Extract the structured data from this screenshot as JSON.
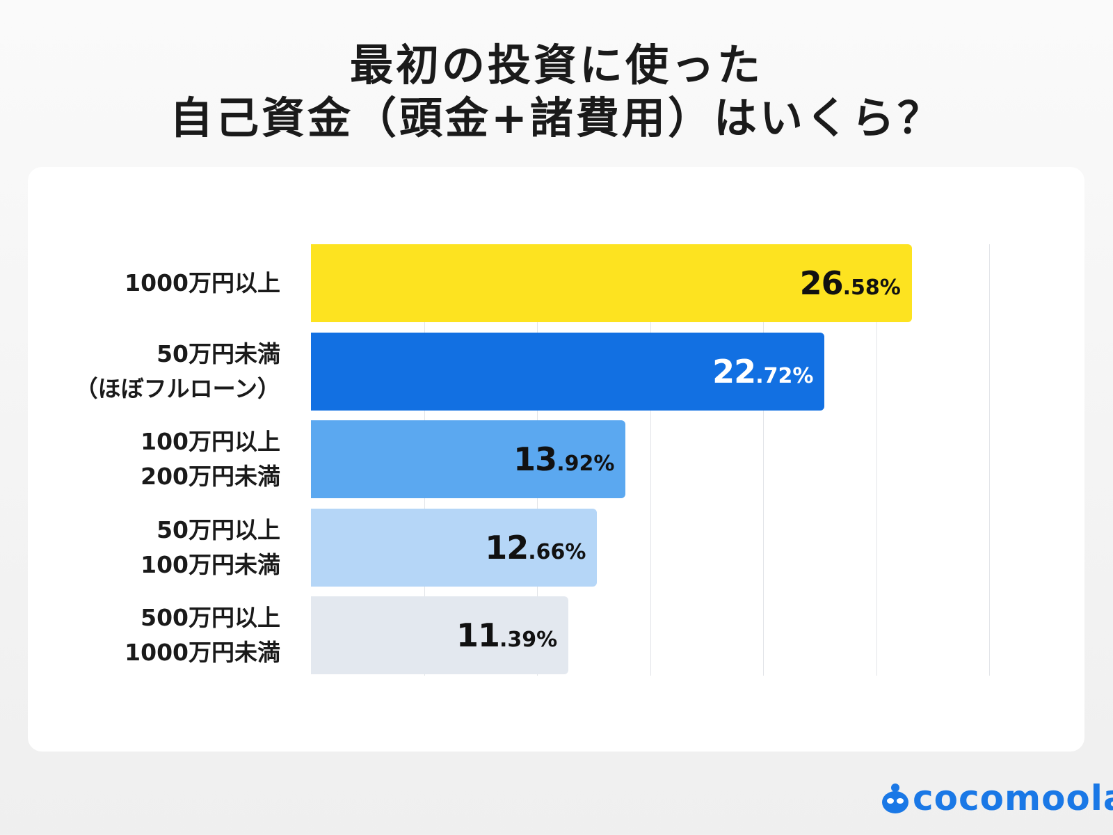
{
  "title": {
    "line1": "最初の投資に使った",
    "line2": "自己資金（頭金+諸費用）はいくら？"
  },
  "chart_data": {
    "type": "bar",
    "orientation": "horizontal",
    "title": "最初の投資に使った自己資金（頭金+諸費用）はいくら？",
    "xlabel": "",
    "ylabel": "",
    "xlim": [
      0,
      30
    ],
    "grid": true,
    "grid_step": 5,
    "unit": "%",
    "categories": [
      [
        "1000万円以上"
      ],
      [
        "50万円未満",
        "（ほぼフルローン）"
      ],
      [
        "100万円以上",
        "200万円未満"
      ],
      [
        "50万円以上",
        "100万円未満"
      ],
      [
        "500万円以上",
        "1000万円未満"
      ]
    ],
    "values": [
      26.58,
      22.72,
      13.92,
      12.66,
      11.39
    ],
    "value_labels": [
      [
        "26",
        ".58%"
      ],
      [
        "22",
        ".72%"
      ],
      [
        "13",
        ".92%"
      ],
      [
        "12",
        ".66%"
      ],
      [
        "11",
        ".39%"
      ]
    ],
    "bar_colors": [
      "#fde320",
      "#1270e2",
      "#5ba8f0",
      "#b5d6f7",
      "#e3e8ef"
    ],
    "label_colors": [
      "#111111",
      "#ffffff",
      "#111111",
      "#111111",
      "#111111"
    ]
  },
  "logo": {
    "text": "cocomoola",
    "color": "#1a78e6"
  }
}
